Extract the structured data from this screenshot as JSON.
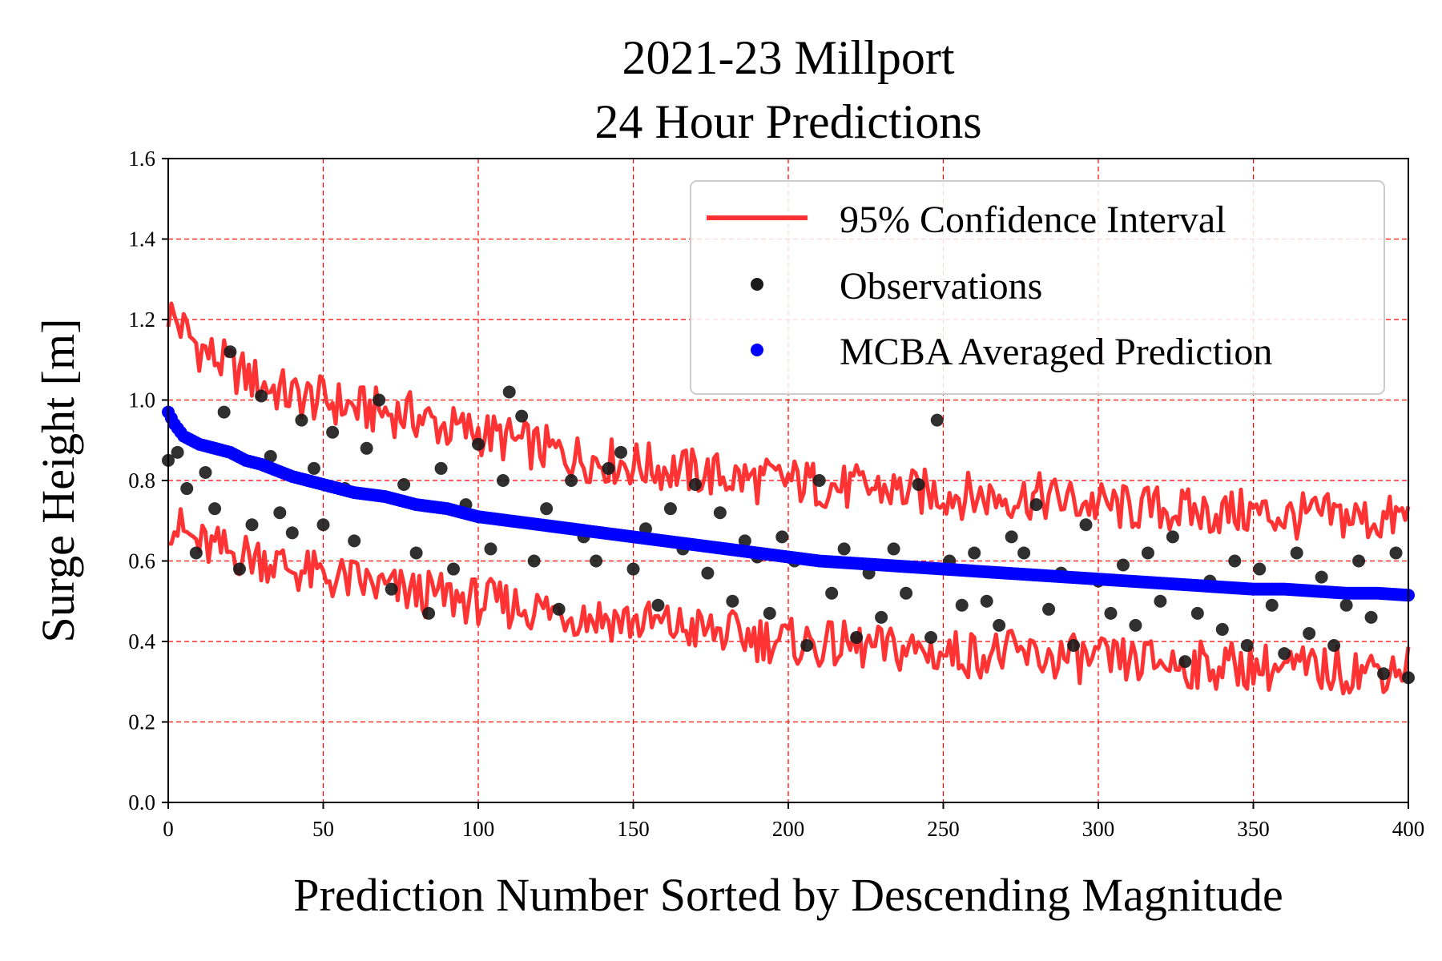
{
  "chart_data": {
    "type": "scatter",
    "title": "2021-23 Millport\n24 Hour Predictions",
    "title_lines": [
      "2021-23 Millport",
      "24 Hour Predictions"
    ],
    "xlabel": "Prediction Number Sorted by Descending Magnitude",
    "ylabel": "Surge Height [m]",
    "xlim": [
      0,
      400
    ],
    "ylim": [
      0,
      1.6
    ],
    "xticks": [
      0,
      50,
      100,
      150,
      200,
      250,
      300,
      350,
      400
    ],
    "yticks": [
      0.0,
      0.2,
      0.4,
      0.6,
      0.8,
      1.0,
      1.2,
      1.4,
      1.6
    ],
    "xtick_labels": [
      "0",
      "50",
      "100",
      "150",
      "200",
      "250",
      "300",
      "350",
      "400"
    ],
    "ytick_labels": [
      "0.0",
      "0.2",
      "0.4",
      "0.6",
      "0.8",
      "1.0",
      "1.2",
      "1.4",
      "1.6"
    ],
    "grid": true,
    "legend_position": "top-right",
    "colors": {
      "confidence": "#ff3333",
      "observations": "#1a1a1a",
      "prediction": "#0000ff",
      "grid": "#ff0000"
    },
    "series": [
      {
        "name": "95% Confidence Interval",
        "kind": "line",
        "x": [
          0,
          10,
          20,
          30,
          40,
          50,
          60,
          70,
          80,
          90,
          100,
          110,
          120,
          130,
          140,
          150,
          160,
          170,
          180,
          190,
          200,
          210,
          220,
          230,
          240,
          250,
          260,
          270,
          280,
          290,
          300,
          310,
          320,
          330,
          340,
          350,
          360,
          370,
          380,
          390,
          400
        ],
        "upper": [
          1.22,
          1.13,
          1.08,
          1.04,
          1.01,
          1.0,
          0.98,
          0.97,
          0.96,
          0.93,
          0.92,
          0.9,
          0.88,
          0.86,
          0.85,
          0.84,
          0.83,
          0.82,
          0.81,
          0.8,
          0.8,
          0.79,
          0.78,
          0.78,
          0.77,
          0.77,
          0.76,
          0.76,
          0.76,
          0.75,
          0.74,
          0.73,
          0.73,
          0.72,
          0.72,
          0.72,
          0.71,
          0.71,
          0.71,
          0.7,
          0.71
        ],
        "lower": [
          0.7,
          0.64,
          0.62,
          0.61,
          0.58,
          0.56,
          0.55,
          0.53,
          0.52,
          0.51,
          0.5,
          0.49,
          0.48,
          0.47,
          0.46,
          0.45,
          0.44,
          0.43,
          0.42,
          0.41,
          0.4,
          0.39,
          0.39,
          0.38,
          0.38,
          0.37,
          0.37,
          0.37,
          0.36,
          0.36,
          0.35,
          0.35,
          0.35,
          0.34,
          0.34,
          0.34,
          0.33,
          0.33,
          0.33,
          0.33,
          0.34
        ]
      },
      {
        "name": "Observations",
        "kind": "scatter",
        "x": [
          0,
          3,
          6,
          9,
          12,
          15,
          18,
          20,
          23,
          27,
          30,
          33,
          36,
          40,
          43,
          47,
          50,
          53,
          57,
          60,
          64,
          68,
          72,
          76,
          80,
          84,
          88,
          92,
          96,
          100,
          104,
          108,
          110,
          114,
          118,
          122,
          126,
          130,
          134,
          138,
          142,
          146,
          150,
          154,
          158,
          162,
          166,
          170,
          174,
          178,
          182,
          186,
          190,
          194,
          198,
          202,
          206,
          210,
          214,
          218,
          222,
          226,
          230,
          234,
          238,
          242,
          246,
          248,
          252,
          256,
          260,
          264,
          268,
          272,
          276,
          280,
          284,
          288,
          292,
          296,
          300,
          304,
          308,
          312,
          316,
          320,
          324,
          328,
          332,
          336,
          340,
          344,
          348,
          352,
          356,
          360,
          364,
          368,
          372,
          376,
          380,
          384,
          388,
          392,
          396,
          400
        ],
        "y": [
          0.85,
          0.87,
          0.78,
          0.62,
          0.82,
          0.73,
          0.97,
          1.12,
          0.58,
          0.69,
          1.01,
          0.86,
          0.72,
          0.67,
          0.95,
          0.83,
          0.69,
          0.92,
          0.78,
          0.65,
          0.88,
          1.0,
          0.53,
          0.79,
          0.62,
          0.47,
          0.83,
          0.58,
          0.74,
          0.89,
          0.63,
          0.8,
          1.02,
          0.96,
          0.6,
          0.73,
          0.48,
          0.8,
          0.66,
          0.6,
          0.83,
          0.87,
          0.58,
          0.68,
          0.49,
          0.73,
          0.63,
          0.79,
          0.57,
          0.72,
          0.5,
          0.65,
          0.61,
          0.47,
          0.66,
          0.6,
          0.39,
          0.8,
          0.52,
          0.63,
          0.41,
          0.57,
          0.46,
          0.63,
          0.52,
          0.79,
          0.41,
          0.95,
          0.6,
          0.49,
          0.62,
          0.5,
          0.44,
          0.66,
          0.62,
          0.74,
          0.48,
          0.57,
          0.39,
          0.69,
          0.55,
          0.47,
          0.59,
          0.44,
          0.62,
          0.5,
          0.66,
          0.35,
          0.47,
          0.55,
          0.43,
          0.6,
          0.39,
          0.58,
          0.49,
          0.37,
          0.62,
          0.42,
          0.56,
          0.39,
          0.49,
          0.6,
          0.46,
          0.32,
          0.62,
          0.31
        ]
      },
      {
        "name": "MCBA Averaged Prediction",
        "kind": "scatter",
        "x": [
          0,
          2,
          5,
          10,
          15,
          20,
          25,
          30,
          40,
          50,
          60,
          70,
          80,
          90,
          100,
          110,
          120,
          130,
          140,
          150,
          160,
          170,
          180,
          190,
          200,
          210,
          220,
          230,
          240,
          250,
          260,
          270,
          280,
          290,
          300,
          310,
          320,
          330,
          340,
          350,
          360,
          370,
          380,
          390,
          400
        ],
        "y": [
          0.97,
          0.94,
          0.91,
          0.89,
          0.88,
          0.87,
          0.85,
          0.84,
          0.81,
          0.79,
          0.77,
          0.76,
          0.74,
          0.73,
          0.71,
          0.7,
          0.69,
          0.68,
          0.67,
          0.66,
          0.65,
          0.64,
          0.63,
          0.62,
          0.61,
          0.6,
          0.595,
          0.59,
          0.585,
          0.58,
          0.575,
          0.57,
          0.565,
          0.56,
          0.555,
          0.55,
          0.545,
          0.54,
          0.535,
          0.53,
          0.53,
          0.525,
          0.52,
          0.52,
          0.515
        ]
      }
    ]
  }
}
